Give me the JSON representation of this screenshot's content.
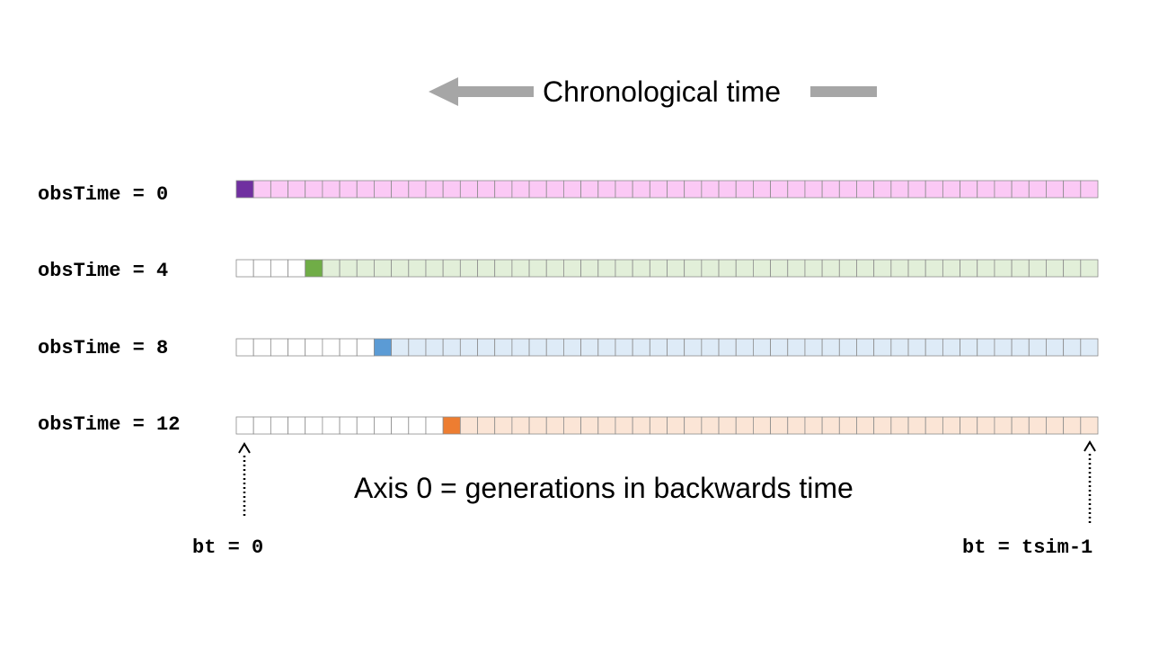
{
  "header": {
    "title": "Chronological time"
  },
  "cells_per_row": 50,
  "rows": [
    {
      "label": "obsTime = 0",
      "offset": 0,
      "highlight_color": "#7030a0",
      "fill_color": "#fbc9f5"
    },
    {
      "label": "obsTime = 4",
      "offset": 4,
      "highlight_color": "#70ad47",
      "fill_color": "#e2efd9"
    },
    {
      "label": "obsTime = 8",
      "offset": 8,
      "highlight_color": "#5b9bd5",
      "fill_color": "#deebf7"
    },
    {
      "label": "obsTime = 12",
      "offset": 12,
      "highlight_color": "#ed7d31",
      "fill_color": "#fbe5d6"
    }
  ],
  "axis": {
    "label": "Axis 0 = generations in backwards time",
    "start_label": "bt = 0",
    "end_label": "bt = tsim-1"
  },
  "colors": {
    "arrow": "#a6a6a6",
    "cell_border": "#8c8c8c",
    "empty_cell": "#ffffff"
  }
}
